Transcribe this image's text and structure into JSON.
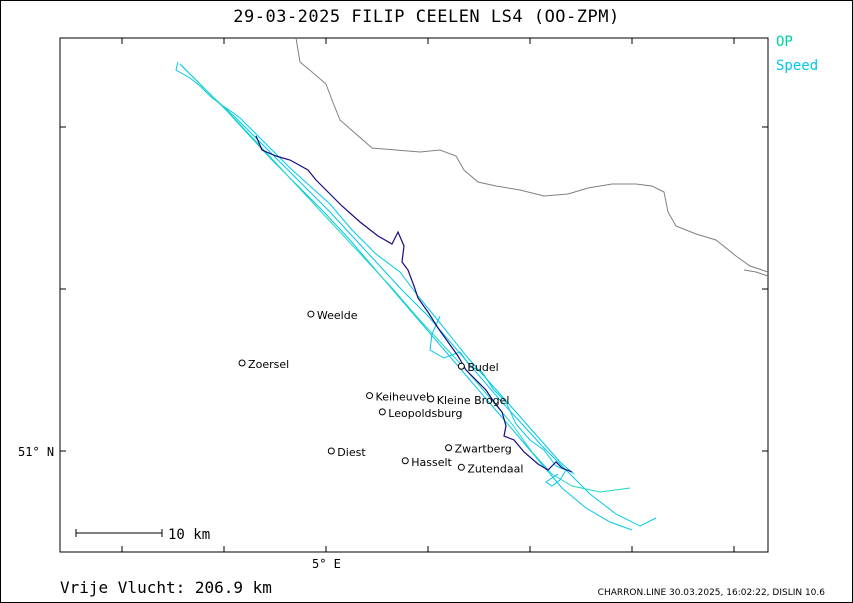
{
  "title": "29-03-2025   FILIP CEELEN   LS4 (OO-ZPM)",
  "legend": [
    {
      "label": "OP",
      "color": "#00d0a0"
    },
    {
      "label": "Speed",
      "color": "#00c8e6"
    }
  ],
  "places": [
    {
      "name": "Weelde",
      "lon": 4.98,
      "lat": 51.42
    },
    {
      "name": "Zoersel",
      "lon": 4.71,
      "lat": 51.27
    },
    {
      "name": "Budel",
      "lon": 5.57,
      "lat": 51.26
    },
    {
      "name": "Keiheuvel",
      "lon": 5.21,
      "lat": 51.17
    },
    {
      "name": "Kleine Brogel",
      "lon": 5.45,
      "lat": 51.16
    },
    {
      "name": "Leopoldsburg",
      "lon": 5.26,
      "lat": 51.12
    },
    {
      "name": "Zwartberg",
      "lon": 5.52,
      "lat": 51.01
    },
    {
      "name": "Diest",
      "lon": 5.06,
      "lat": 51.0
    },
    {
      "name": "Hasselt",
      "lon": 5.35,
      "lat": 50.97
    },
    {
      "name": "Zutendaal",
      "lon": 5.57,
      "lat": 50.95
    }
  ],
  "axes": {
    "lon_label": "5° E",
    "lat_label": "51° N"
  },
  "scale_bar": {
    "label": "10 km",
    "km": 10
  },
  "colors": {
    "border": "#808080",
    "track_dark": "#1a0a80",
    "track_light": "#00c8e6",
    "track_teal": "#20d8c0"
  },
  "footer": {
    "distance": "Vrije Vlucht:  206.9 km",
    "credit": "CHARRON.LINE 30.03.2025, 16:02:22, DISLIN 10.6"
  }
}
